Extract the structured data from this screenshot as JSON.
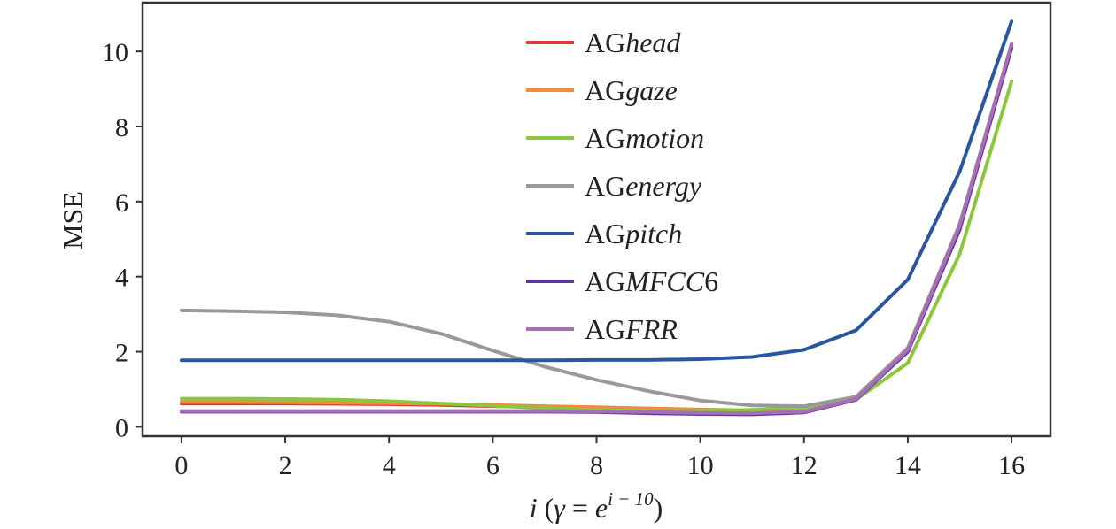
{
  "chart_data": {
    "type": "line",
    "x": [
      0,
      1,
      2,
      3,
      4,
      5,
      6,
      7,
      8,
      9,
      10,
      11,
      12,
      13,
      14,
      15,
      16
    ],
    "xticks": [
      0,
      2,
      4,
      6,
      8,
      10,
      12,
      14,
      16
    ],
    "yticks": [
      0,
      2,
      4,
      6,
      8,
      10
    ],
    "xlim": [
      -0.75,
      16.75
    ],
    "ylim": [
      -0.25,
      11.3
    ],
    "ylabel": "MSE",
    "xlabel": {
      "i": "i",
      "open": " (",
      "gamma": "γ",
      "equals": " = ",
      "e": "e",
      "exponent": "i − 10",
      "close": ")"
    },
    "grid": false,
    "legend_position": "top-center",
    "series": [
      {
        "name_prefix": "AG",
        "name_suffix": "head",
        "color": "#e03a3a",
        "values": [
          0.62,
          0.62,
          0.62,
          0.61,
          0.6,
          0.58,
          0.55,
          0.52,
          0.48,
          0.45,
          0.42,
          0.4,
          0.42,
          0.75,
          2.0,
          5.3,
          10.1
        ]
      },
      {
        "name_prefix": "AG",
        "name_suffix": "gaze",
        "color": "#f28c3c",
        "values": [
          0.66,
          0.66,
          0.65,
          0.64,
          0.63,
          0.61,
          0.58,
          0.55,
          0.52,
          0.49,
          0.46,
          0.44,
          0.45,
          0.78,
          2.05,
          5.35,
          10.15
        ]
      },
      {
        "name_prefix": "AG",
        "name_suffix": "motion",
        "color": "#8cc63f",
        "values": [
          0.75,
          0.75,
          0.74,
          0.72,
          0.68,
          0.62,
          0.56,
          0.5,
          0.45,
          0.42,
          0.42,
          0.45,
          0.5,
          0.72,
          1.7,
          4.6,
          9.2
        ]
      },
      {
        "name_prefix": "AG",
        "name_suffix": "energy",
        "color": "#999999",
        "values": [
          3.1,
          3.08,
          3.05,
          2.97,
          2.8,
          2.48,
          2.03,
          1.6,
          1.25,
          0.95,
          0.7,
          0.57,
          0.55,
          0.8,
          2.1,
          5.4,
          10.2
        ]
      },
      {
        "name_prefix": "AG",
        "name_suffix": "pitch",
        "color": "#2a55a0",
        "values": [
          1.77,
          1.77,
          1.77,
          1.77,
          1.77,
          1.77,
          1.77,
          1.77,
          1.78,
          1.78,
          1.8,
          1.86,
          2.05,
          2.57,
          3.92,
          6.8,
          10.8
        ]
      },
      {
        "name_prefix": "AG",
        "name_suffix": "MFCC",
        "name_tail": "6",
        "color": "#5a3a96",
        "values": [
          0.4,
          0.4,
          0.4,
          0.4,
          0.4,
          0.4,
          0.4,
          0.4,
          0.39,
          0.36,
          0.34,
          0.33,
          0.38,
          0.72,
          2.0,
          5.25,
          10.1
        ]
      },
      {
        "name_prefix": "AG",
        "name_suffix": "FRR",
        "color": "#a96cb8",
        "values": [
          0.42,
          0.42,
          0.42,
          0.42,
          0.42,
          0.42,
          0.42,
          0.42,
          0.41,
          0.39,
          0.37,
          0.36,
          0.4,
          0.74,
          2.05,
          5.35,
          10.2
        ]
      }
    ]
  }
}
